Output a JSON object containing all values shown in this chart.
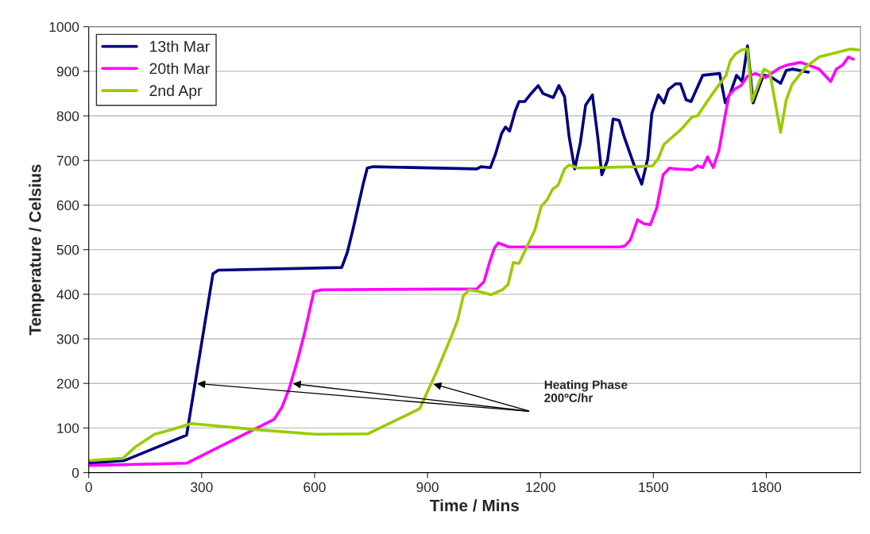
{
  "chart_data": {
    "type": "line",
    "xlabel": "Time / Mins",
    "ylabel": "Temperature / Celsius",
    "xlim": [
      0,
      2050
    ],
    "xticks": [
      0,
      300,
      600,
      900,
      1200,
      1500,
      1800
    ],
    "ylim": [
      0,
      1000
    ],
    "yticks": [
      0,
      100,
      200,
      300,
      400,
      500,
      600,
      700,
      800,
      900,
      1000
    ],
    "grid": "y",
    "legend": "top left",
    "marker": "none",
    "line_style": "solid",
    "annotations": [
      "Heating Phase\n200ºC/hr"
    ],
    "series": [
      {
        "name": "13th Mar",
        "color": "#000080",
        "x": [
          0,
          95,
          260,
          330,
          344,
          672,
          687,
          704,
          729,
          740,
          756,
          1031,
          1042,
          1067,
          1080,
          1097,
          1107,
          1118,
          1133,
          1143,
          1158,
          1175,
          1194,
          1207,
          1234,
          1249,
          1264,
          1276,
          1291,
          1306,
          1320,
          1338,
          1352,
          1363,
          1378,
          1393,
          1409,
          1424,
          1454,
          1469,
          1485,
          1496,
          1513,
          1528,
          1540,
          1559,
          1572,
          1587,
          1600,
          1631,
          1676,
          1691,
          1704,
          1721,
          1736,
          1750,
          1765,
          1792,
          1809,
          1838,
          1853,
          1870,
          1912
        ],
        "values": [
          21,
          27,
          84,
          446,
          454,
          460,
          494,
          553,
          647,
          683,
          686,
          681,
          686,
          684,
          713,
          761,
          775,
          766,
          811,
          832,
          832,
          850,
          868,
          850,
          841,
          868,
          843,
          754,
          681,
          740,
          824,
          847,
          754,
          668,
          700,
          793,
          790,
          749,
          677,
          647,
          704,
          806,
          847,
          829,
          859,
          872,
          872,
          836,
          832,
          891,
          895,
          829,
          850,
          891,
          877,
          957,
          829,
          891,
          889,
          873,
          902,
          905,
          898
        ]
      },
      {
        "name": "20th Mar",
        "color": "#ff00ff",
        "x": [
          0,
          260,
          492,
          513,
          532,
          554,
          573,
          598,
          619,
          1031,
          1050,
          1065,
          1078,
          1088,
          1116,
          1411,
          1424,
          1439,
          1458,
          1475,
          1492,
          1509,
          1526,
          1543,
          1557,
          1602,
          1617,
          1631,
          1644,
          1659,
          1674,
          1691,
          1701,
          1718,
          1733,
          1750,
          1771,
          1798,
          1834,
          1855,
          1891,
          1912,
          1940,
          1971,
          1986,
          2003,
          2018,
          2031
        ],
        "values": [
          16,
          21,
          119,
          146,
          187,
          250,
          312,
          406,
          410,
          412,
          428,
          472,
          504,
          515,
          506,
          506,
          508,
          522,
          567,
          558,
          556,
          594,
          668,
          683,
          681,
          679,
          688,
          684,
          708,
          684,
          722,
          802,
          847,
          861,
          868,
          889,
          895,
          886,
          907,
          914,
          920,
          914,
          905,
          877,
          905,
          914,
          932,
          927
        ]
      },
      {
        "name": "2nd Apr",
        "color": "#99cc00",
        "x": [
          0,
          91,
          123,
          175,
          218,
          273,
          448,
          602,
          742,
          879,
          925,
          964,
          980,
          995,
          1010,
          1038,
          1069,
          1099,
          1114,
          1128,
          1143,
          1185,
          1202,
          1217,
          1232,
          1247,
          1264,
          1276,
          1300,
          1454,
          1498,
          1513,
          1528,
          1574,
          1602,
          1617,
          1659,
          1693,
          1704,
          1718,
          1735,
          1750,
          1762,
          1794,
          1809,
          1838,
          1853,
          1868,
          1904,
          1940,
          2024,
          2045
        ],
        "values": [
          27,
          32,
          57,
          86,
          96,
          110,
          96,
          86,
          87,
          143,
          228,
          307,
          342,
          396,
          410,
          406,
          399,
          410,
          422,
          471,
          469,
          544,
          597,
          611,
          635,
          645,
          681,
          690,
          683,
          686,
          688,
          704,
          736,
          770,
          797,
          800,
          852,
          891,
          923,
          939,
          948,
          950,
          833,
          905,
          898,
          763,
          836,
          870,
          909,
          932,
          950,
          948
        ]
      }
    ]
  }
}
